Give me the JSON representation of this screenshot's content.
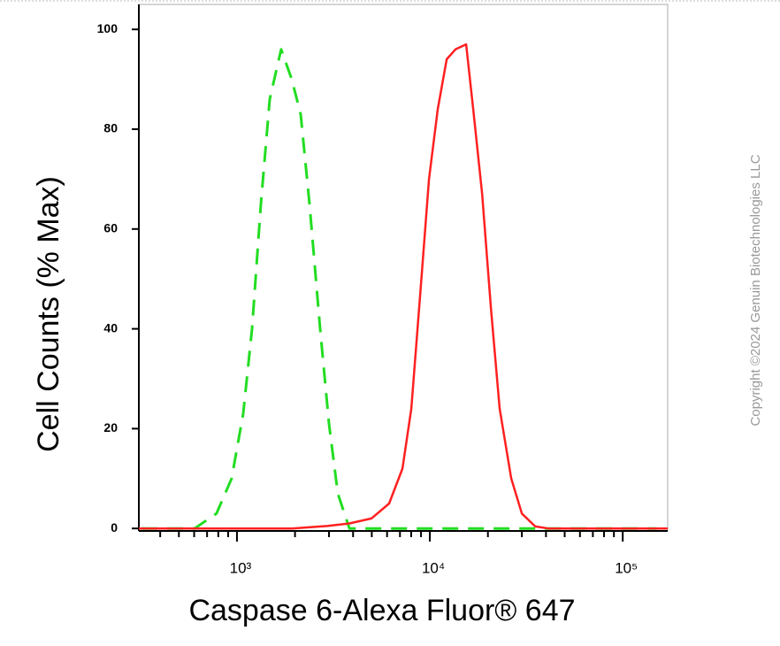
{
  "chart_data": {
    "type": "line",
    "x_label": "Caspase 6-Alexa Fluor® 647",
    "y_label": "Cell Counts (% Max)",
    "watermark": "Copyright ©2024 Genuin Biotechnologies LLC",
    "xscale": "log",
    "xlim": [
      310,
      171000
    ],
    "ylim": [
      -0.5,
      105
    ],
    "xticks": [
      {
        "value": 1000,
        "label": "10³"
      },
      {
        "value": 10000,
        "label": "10⁴"
      },
      {
        "value": 100000,
        "label": "10⁵"
      }
    ],
    "xminorticks": [
      400,
      500,
      600,
      700,
      800,
      900,
      2000,
      3000,
      4000,
      5000,
      6000,
      7000,
      8000,
      9000,
      20000,
      30000,
      40000,
      50000,
      60000,
      70000,
      80000,
      90000
    ],
    "yticks": [
      0,
      20,
      40,
      60,
      80,
      100
    ],
    "series": [
      {
        "color": "#22dd22",
        "dashed": true,
        "x": [
          320,
          603,
          783,
          938,
          1077,
          1197,
          1330,
          1479,
          1695,
          1923,
          2139,
          2377,
          2698,
          2999,
          3335,
          3828,
          10000,
          150000
        ],
        "values": [
          0,
          0,
          3,
          10,
          23,
          40,
          65,
          86,
          96,
          90,
          83,
          65,
          40,
          21,
          7,
          0,
          0,
          0
        ]
      },
      {
        "color": "#ff2020",
        "dashed": false,
        "x": [
          310,
          1923,
          2938,
          3828,
          4977,
          6152,
          7211,
          8017,
          8913,
          9895,
          10990,
          12220,
          13580,
          15420,
          16790,
          18660,
          20750,
          23020,
          26420,
          29990,
          35160,
          41180,
          171000
        ],
        "values": [
          0,
          0,
          0.5,
          1,
          2,
          5,
          12,
          24,
          47,
          70,
          84,
          94,
          96,
          97,
          84,
          67,
          44,
          24,
          10,
          3,
          0.4,
          0,
          0
        ]
      }
    ]
  }
}
